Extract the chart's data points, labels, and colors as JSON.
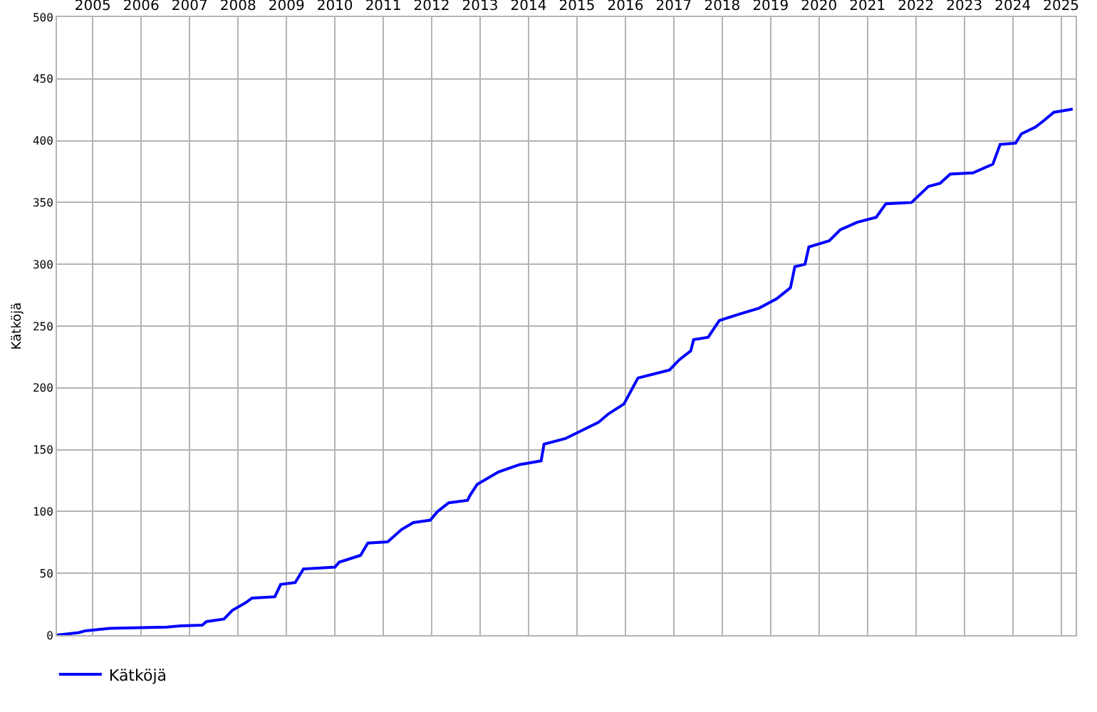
{
  "chart_data": {
    "type": "line",
    "ylabel": "Kätköjä",
    "x": [
      2004.76,
      2005.21,
      2005.35,
      2005.85,
      2007.03,
      2007.32,
      2007.76,
      2007.85,
      2008.21,
      2008.38,
      2008.65,
      2008.79,
      2009.26,
      2009.38,
      2009.68,
      2009.85,
      2010.5,
      2010.59,
      2011.03,
      2011.18,
      2011.59,
      2011.88,
      2012.12,
      2012.47,
      2012.62,
      2012.85,
      2013.24,
      2013.29,
      2013.44,
      2013.88,
      2014.32,
      2014.76,
      2014.82,
      2015.26,
      2015.94,
      2016.15,
      2016.47,
      2016.76,
      2017.06,
      2017.41,
      2017.62,
      2017.85,
      2017.91,
      2018.21,
      2018.44,
      2018.88,
      2019.26,
      2019.62,
      2019.91,
      2020.0,
      2020.21,
      2020.29,
      2020.71,
      2020.94,
      2021.29,
      2021.68,
      2021.88,
      2022.41,
      2022.76,
      2023.0,
      2023.21,
      2023.68,
      2024.09,
      2024.24,
      2024.56,
      2024.68,
      2024.97,
      2025.15,
      2025.35,
      2025.74
    ],
    "series": [
      {
        "name": "Kätköjä",
        "color": "#0000ff",
        "values": [
          0,
          2,
          3.5,
          5.5,
          6.5,
          7.5,
          8,
          11,
          13,
          20,
          26,
          30,
          31,
          41,
          42.5,
          53.5,
          55,
          59,
          64.5,
          74.5,
          75.5,
          85.5,
          91,
          93,
          100,
          107,
          109,
          113,
          122,
          132,
          138,
          141,
          154.5,
          159,
          172,
          179,
          187,
          208,
          211,
          214.5,
          223,
          230,
          239,
          241,
          254.5,
          260,
          264.5,
          272,
          281,
          298,
          300,
          314,
          319,
          328,
          334,
          338,
          349,
          350,
          363,
          365.5,
          373,
          374,
          381,
          397,
          398,
          405.5,
          411,
          416.5,
          423,
          425.5
        ]
      }
    ],
    "xlim": [
      2004.76,
      2025.8
    ],
    "xticks": [
      {
        "value": 2005.5,
        "label": "2005"
      },
      {
        "value": 2006.5,
        "label": "2006"
      },
      {
        "value": 2007.5,
        "label": "2007"
      },
      {
        "value": 2008.5,
        "label": "2008"
      },
      {
        "value": 2009.5,
        "label": "2009"
      },
      {
        "value": 2010.5,
        "label": "2010"
      },
      {
        "value": 2011.5,
        "label": "2011"
      },
      {
        "value": 2012.5,
        "label": "2012"
      },
      {
        "value": 2013.5,
        "label": "2013"
      },
      {
        "value": 2014.5,
        "label": "2014"
      },
      {
        "value": 2015.5,
        "label": "2015"
      },
      {
        "value": 2016.5,
        "label": "2016"
      },
      {
        "value": 2017.5,
        "label": "2017"
      },
      {
        "value": 2018.5,
        "label": "2018"
      },
      {
        "value": 2019.5,
        "label": "2019"
      },
      {
        "value": 2020.5,
        "label": "2020"
      },
      {
        "value": 2021.5,
        "label": "2021"
      },
      {
        "value": 2022.5,
        "label": "2022"
      },
      {
        "value": 2023.5,
        "label": "2023"
      },
      {
        "value": 2024.5,
        "label": "2024"
      },
      {
        "value": 2025.5,
        "label": "2025"
      }
    ],
    "ylim": [
      0,
      500
    ],
    "yticks": [
      0,
      50,
      100,
      150,
      200,
      250,
      300,
      350,
      400,
      450,
      500
    ],
    "grid": true,
    "legend": "bottom left",
    "marker": "none",
    "line_style": "solid"
  }
}
